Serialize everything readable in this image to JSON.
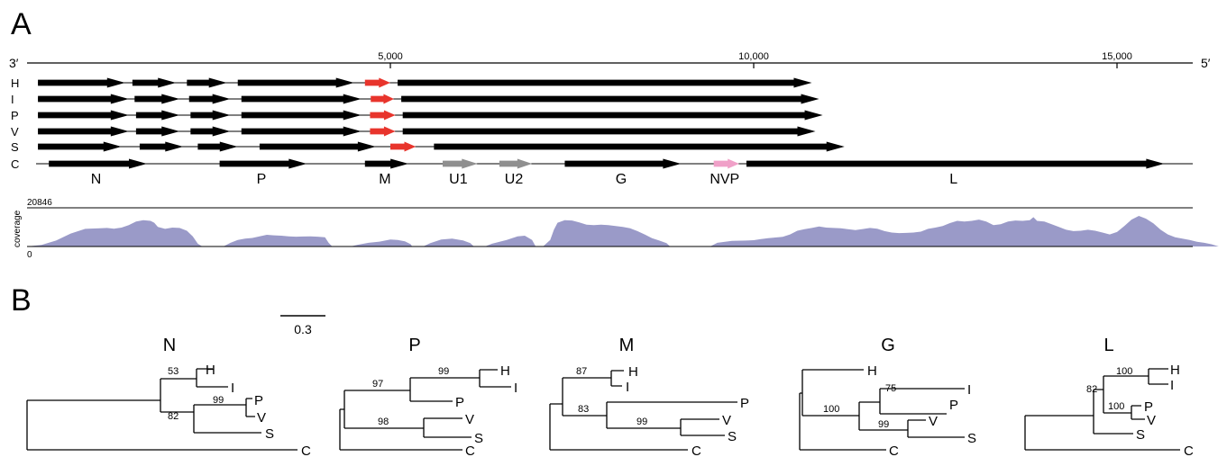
{
  "panels": {
    "a": "A",
    "b": "B"
  },
  "ruler": {
    "left_end": "3′",
    "right_end": "5′",
    "ticks": [
      {
        "pos": 5000,
        "label": "5,000"
      },
      {
        "pos": 10000,
        "label": "10,000"
      },
      {
        "pos": 15000,
        "label": "15,000"
      }
    ]
  },
  "genomes": [
    {
      "label": "H",
      "genes": [
        {
          "s": 0,
          "e": 1200,
          "c": "black"
        },
        {
          "s": 1300,
          "e": 1900,
          "c": "black"
        },
        {
          "s": 2050,
          "e": 2600,
          "c": "black"
        },
        {
          "s": 2750,
          "e": 4350,
          "c": "black"
        },
        {
          "s": 4500,
          "e": 4850,
          "c": "red"
        },
        {
          "s": 4950,
          "e": 10650,
          "c": "black"
        }
      ]
    },
    {
      "label": "I",
      "genes": [
        {
          "s": 0,
          "e": 1250,
          "c": "black"
        },
        {
          "s": 1330,
          "e": 1950,
          "c": "black"
        },
        {
          "s": 2080,
          "e": 2650,
          "c": "black"
        },
        {
          "s": 2800,
          "e": 4450,
          "c": "black"
        },
        {
          "s": 4580,
          "e": 4900,
          "c": "red"
        },
        {
          "s": 5000,
          "e": 10750,
          "c": "black"
        }
      ]
    },
    {
      "label": "P",
      "genes": [
        {
          "s": 0,
          "e": 1250,
          "c": "black"
        },
        {
          "s": 1350,
          "e": 1950,
          "c": "black"
        },
        {
          "s": 2100,
          "e": 2650,
          "c": "black"
        },
        {
          "s": 2800,
          "e": 4450,
          "c": "black"
        },
        {
          "s": 4570,
          "e": 4920,
          "c": "red"
        },
        {
          "s": 5020,
          "e": 10800,
          "c": "black"
        }
      ]
    },
    {
      "label": "V",
      "genes": [
        {
          "s": 0,
          "e": 1250,
          "c": "black"
        },
        {
          "s": 1350,
          "e": 1950,
          "c": "black"
        },
        {
          "s": 2100,
          "e": 2650,
          "c": "black"
        },
        {
          "s": 2800,
          "e": 4450,
          "c": "black"
        },
        {
          "s": 4570,
          "e": 4920,
          "c": "red"
        },
        {
          "s": 5020,
          "e": 10700,
          "c": "black"
        }
      ]
    },
    {
      "label": "S",
      "genes": [
        {
          "s": 0,
          "e": 1150,
          "c": "black"
        },
        {
          "s": 1400,
          "e": 2000,
          "c": "black"
        },
        {
          "s": 2200,
          "e": 2750,
          "c": "black"
        },
        {
          "s": 3050,
          "e": 4650,
          "c": "black"
        },
        {
          "s": 4850,
          "e": 5200,
          "c": "red"
        },
        {
          "s": 5450,
          "e": 11100,
          "c": "black"
        }
      ]
    }
  ],
  "consensus": {
    "label": "C",
    "genes": [
      {
        "name": "N",
        "s": 300,
        "e": 1650,
        "c": "black"
      },
      {
        "name": "P",
        "s": 2650,
        "e": 3850,
        "c": "black"
      },
      {
        "name": "M",
        "s": 4650,
        "e": 5250,
        "c": "black"
      },
      {
        "name": "U1",
        "s": 5720,
        "e": 6200,
        "c": "gray"
      },
      {
        "name": "U2",
        "s": 6500,
        "e": 6950,
        "c": "gray"
      },
      {
        "name": "G",
        "s": 7400,
        "e": 9000,
        "c": "black"
      },
      {
        "name": "NVP",
        "s": 9450,
        "e": 9800,
        "c": "pink"
      },
      {
        "name": "L",
        "s": 9900,
        "e": 15650,
        "c": "black"
      }
    ]
  },
  "coverage": {
    "ylabel": "coverage",
    "max_label": "20846",
    "min_label": "0",
    "max": 20846,
    "points": [
      [
        0,
        0
      ],
      [
        200,
        800
      ],
      [
        400,
        3200
      ],
      [
        600,
        7000
      ],
      [
        800,
        9500
      ],
      [
        1000,
        9800
      ],
      [
        1100,
        10000
      ],
      [
        1200,
        9600
      ],
      [
        1300,
        10200
      ],
      [
        1400,
        11500
      ],
      [
        1500,
        13500
      ],
      [
        1600,
        14200
      ],
      [
        1700,
        13800
      ],
      [
        1750,
        12800
      ],
      [
        1800,
        10500
      ],
      [
        1900,
        9500
      ],
      [
        2000,
        10200
      ],
      [
        2100,
        10000
      ],
      [
        2200,
        8500
      ],
      [
        2280,
        5500
      ],
      [
        2350,
        1500
      ],
      [
        2400,
        300
      ],
      [
        2450,
        0
      ],
      [
        2700,
        0
      ],
      [
        2800,
        2000
      ],
      [
        2900,
        3500
      ],
      [
        3000,
        4200
      ],
      [
        3100,
        4600
      ],
      [
        3200,
        5500
      ],
      [
        3300,
        6300
      ],
      [
        3400,
        6000
      ],
      [
        3500,
        5800
      ],
      [
        3600,
        5500
      ],
      [
        3700,
        5300
      ],
      [
        3800,
        5400
      ],
      [
        3900,
        5500
      ],
      [
        4000,
        5300
      ],
      [
        4100,
        5000
      ],
      [
        4150,
        2000
      ],
      [
        4200,
        0
      ],
      [
        4450,
        0
      ],
      [
        4550,
        900
      ],
      [
        4700,
        2000
      ],
      [
        4850,
        2600
      ],
      [
        5000,
        3800
      ],
      [
        5100,
        3500
      ],
      [
        5200,
        2800
      ],
      [
        5280,
        1200
      ],
      [
        5300,
        0
      ],
      [
        5450,
        0
      ],
      [
        5550,
        1800
      ],
      [
        5700,
        3800
      ],
      [
        5850,
        4200
      ],
      [
        6000,
        3300
      ],
      [
        6100,
        1800
      ],
      [
        6150,
        0
      ],
      [
        6300,
        0
      ],
      [
        6400,
        1500
      ],
      [
        6600,
        3500
      ],
      [
        6750,
        5500
      ],
      [
        6850,
        5800
      ],
      [
        6950,
        3500
      ],
      [
        7000,
        0
      ],
      [
        7100,
        0
      ],
      [
        7200,
        3500
      ],
      [
        7250,
        9000
      ],
      [
        7300,
        12800
      ],
      [
        7400,
        14200
      ],
      [
        7500,
        14000
      ],
      [
        7600,
        13000
      ],
      [
        7700,
        11800
      ],
      [
        7800,
        11500
      ],
      [
        7900,
        11800
      ],
      [
        8000,
        11500
      ],
      [
        8100,
        11000
      ],
      [
        8200,
        10500
      ],
      [
        8300,
        9800
      ],
      [
        8400,
        8300
      ],
      [
        8500,
        6500
      ],
      [
        8600,
        4500
      ],
      [
        8700,
        3200
      ],
      [
        8800,
        1800
      ],
      [
        8850,
        0
      ],
      [
        9400,
        0
      ],
      [
        9500,
        2000
      ],
      [
        9700,
        3000
      ],
      [
        9900,
        3200
      ],
      [
        10000,
        3400
      ],
      [
        10100,
        4000
      ],
      [
        10200,
        4500
      ],
      [
        10400,
        5200
      ],
      [
        10500,
        6500
      ],
      [
        10600,
        8500
      ],
      [
        10700,
        9300
      ],
      [
        10800,
        10000
      ],
      [
        10900,
        10800
      ],
      [
        11000,
        10200
      ],
      [
        11200,
        9800
      ],
      [
        11400,
        8800
      ],
      [
        11500,
        9400
      ],
      [
        11600,
        10000
      ],
      [
        11700,
        9600
      ],
      [
        11800,
        8300
      ],
      [
        11900,
        7500
      ],
      [
        12000,
        7200
      ],
      [
        12100,
        7300
      ],
      [
        12200,
        7500
      ],
      [
        12300,
        8000
      ],
      [
        12400,
        9500
      ],
      [
        12500,
        10200
      ],
      [
        12600,
        11000
      ],
      [
        12700,
        12600
      ],
      [
        12800,
        13800
      ],
      [
        12900,
        13500
      ],
      [
        13000,
        13800
      ],
      [
        13100,
        14500
      ],
      [
        13200,
        13500
      ],
      [
        13300,
        11500
      ],
      [
        13400,
        12000
      ],
      [
        13500,
        13500
      ],
      [
        13600,
        14000
      ],
      [
        13700,
        13800
      ],
      [
        13800,
        14200
      ],
      [
        13850,
        15800
      ],
      [
        13900,
        13800
      ],
      [
        14000,
        13500
      ],
      [
        14100,
        12000
      ],
      [
        14200,
        10500
      ],
      [
        14300,
        9000
      ],
      [
        14400,
        8300
      ],
      [
        14500,
        8500
      ],
      [
        14600,
        9000
      ],
      [
        14700,
        8500
      ],
      [
        14800,
        7500
      ],
      [
        14900,
        6500
      ],
      [
        15000,
        7800
      ],
      [
        15100,
        11000
      ],
      [
        15200,
        14500
      ],
      [
        15300,
        16500
      ],
      [
        15400,
        15000
      ],
      [
        15500,
        12500
      ],
      [
        15600,
        9000
      ],
      [
        15700,
        6500
      ],
      [
        15800,
        5000
      ],
      [
        15900,
        4200
      ],
      [
        16000,
        3500
      ],
      [
        16100,
        2500
      ],
      [
        16200,
        2000
      ],
      [
        16300,
        1200
      ],
      [
        16400,
        0
      ]
    ]
  },
  "trees": {
    "scale_label": "0.3",
    "items": [
      {
        "title": "N",
        "leaves": [
          "H",
          "I",
          "P",
          "V",
          "S",
          "C"
        ],
        "bootstraps": [
          "53",
          "82",
          "99"
        ]
      },
      {
        "title": "P",
        "leaves": [
          "H",
          "I",
          "P",
          "V",
          "S",
          "C"
        ],
        "bootstraps": [
          "97",
          "99",
          "98"
        ]
      },
      {
        "title": "M",
        "leaves": [
          "H",
          "I",
          "P",
          "V",
          "S",
          "C"
        ],
        "bootstraps": [
          "87",
          "83",
          "99"
        ]
      },
      {
        "title": "G",
        "leaves": [
          "H",
          "I",
          "P",
          "V",
          "S",
          "C"
        ],
        "bootstraps": [
          "75",
          "100",
          "99"
        ]
      },
      {
        "title": "L",
        "leaves": [
          "H",
          "I",
          "P",
          "V",
          "S",
          "C"
        ],
        "bootstraps": [
          "100",
          "82",
          "100"
        ]
      }
    ]
  },
  "colors": {
    "gene_black": "#000000",
    "gene_red": "#e8342c",
    "gene_gray": "#8f8f8f",
    "gene_pink": "#f0a0c8",
    "coverage_fill": "#9a9ac8"
  }
}
